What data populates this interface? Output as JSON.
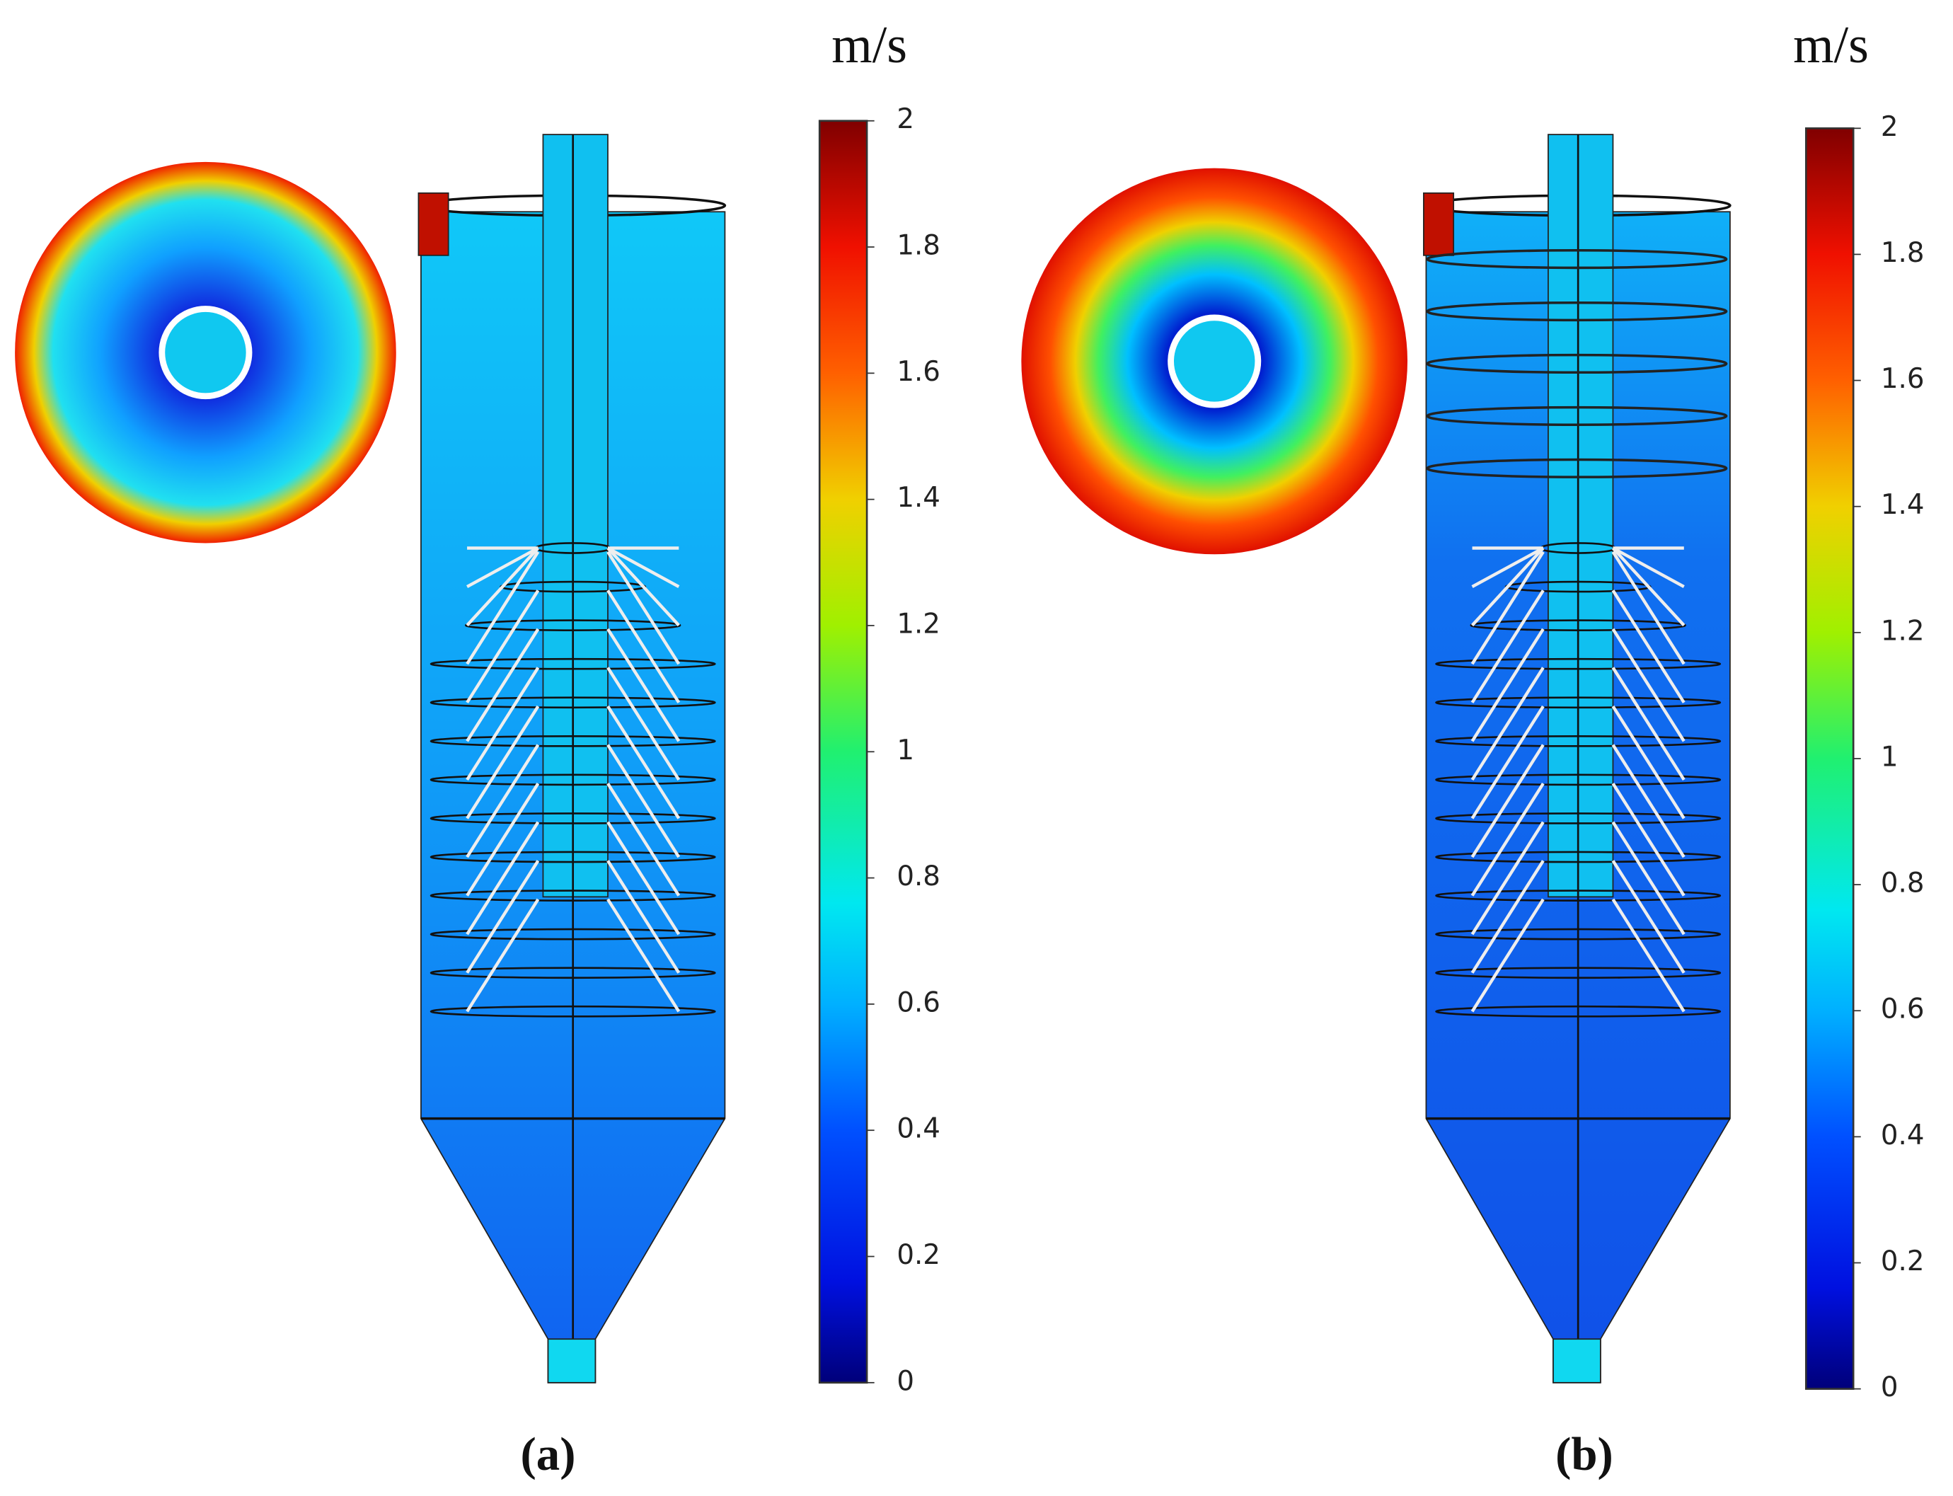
{
  "panels": [
    {
      "label": "(a)",
      "unit": "m/s",
      "colorbar": {
        "lim": [
          0,
          2
        ],
        "ticks": [
          0,
          0.2,
          0.4,
          0.6,
          0.8,
          1,
          1.2,
          1.4,
          1.6,
          1.8,
          2
        ]
      }
    },
    {
      "label": "(b)",
      "unit": "m/s",
      "colorbar": {
        "lim": [
          0,
          2
        ],
        "ticks": [
          0,
          0.2,
          0.4,
          0.6,
          0.8,
          1,
          1.2,
          1.4,
          1.6,
          1.8,
          2
        ]
      }
    }
  ]
}
